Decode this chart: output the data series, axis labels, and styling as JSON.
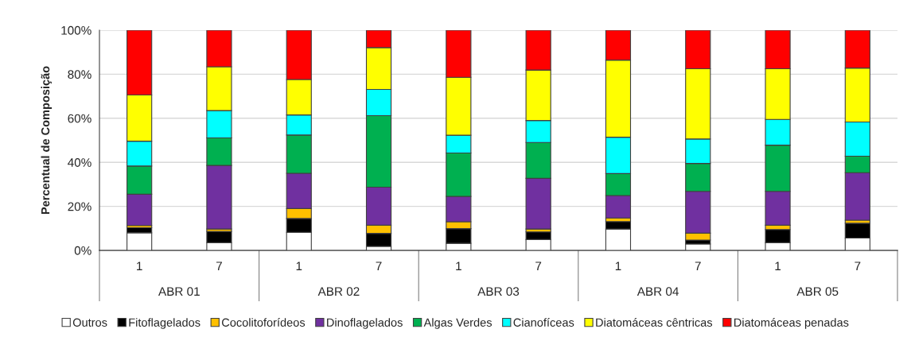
{
  "chart_data": {
    "type": "bar",
    "stacked": true,
    "ylabel": "Percentual de Composição",
    "categories": [
      "1",
      "7",
      "1",
      "7",
      "1",
      "7",
      "1",
      "7",
      "1",
      "7"
    ],
    "annotations": [
      "ABR 01",
      "ABR 02",
      "ABR 03",
      "ABR 04",
      "ABR 05"
    ],
    "series": [
      {
        "name": "Outros",
        "color": "#ffffff",
        "values": [
          8.0,
          3.5,
          8.2,
          1.8,
          3.2,
          4.9,
          9.7,
          2.9,
          3.5,
          5.6
        ]
      },
      {
        "name": "Fitoflagelados",
        "color": "#000000",
        "values": [
          2.3,
          5.1,
          6.3,
          5.9,
          6.7,
          3.5,
          3.4,
          1.8,
          6.0,
          6.7
        ]
      },
      {
        "name": "Cocolitoforídeos",
        "color": "#ffc000",
        "values": [
          1.0,
          1.1,
          4.5,
          3.7,
          3.1,
          1.3,
          1.6,
          3.1,
          1.9,
          1.4
        ]
      },
      {
        "name": "Dinoflagelados",
        "color": "#7030a0",
        "values": [
          14.2,
          28.9,
          16.0,
          17.3,
          11.5,
          23.0,
          10.2,
          19.0,
          15.4,
          21.6
        ]
      },
      {
        "name": "Algas Verdes",
        "color": "#00b050",
        "values": [
          12.8,
          12.5,
          17.4,
          32.5,
          19.7,
          16.3,
          10.0,
          12.7,
          21.0,
          7.5
        ]
      },
      {
        "name": "Cianofíceas",
        "color": "#00ffff",
        "values": [
          11.3,
          12.4,
          9.1,
          11.9,
          8.1,
          10.0,
          16.5,
          11.1,
          11.7,
          15.5
        ]
      },
      {
        "name": "Diatomáceas cêntricas",
        "color": "#ffff00",
        "values": [
          21.0,
          19.9,
          16.1,
          19.0,
          26.3,
          22.9,
          35.0,
          31.9,
          23.0,
          24.5
        ]
      },
      {
        "name": "Diatomáceas penadas",
        "color": "#ff0000",
        "values": [
          29.4,
          16.6,
          22.4,
          7.9,
          21.4,
          18.1,
          13.6,
          17.5,
          17.5,
          17.2
        ]
      }
    ],
    "ylim": [
      0,
      100
    ],
    "yticks": [
      {
        "value": 0,
        "label": "0%"
      },
      {
        "value": 20,
        "label": "20%"
      },
      {
        "value": 40,
        "label": "40%"
      },
      {
        "value": 60,
        "label": "60%"
      },
      {
        "value": 80,
        "label": "80%"
      },
      {
        "value": 100,
        "label": "100%"
      }
    ],
    "grid": "y",
    "legend": "bottom"
  }
}
